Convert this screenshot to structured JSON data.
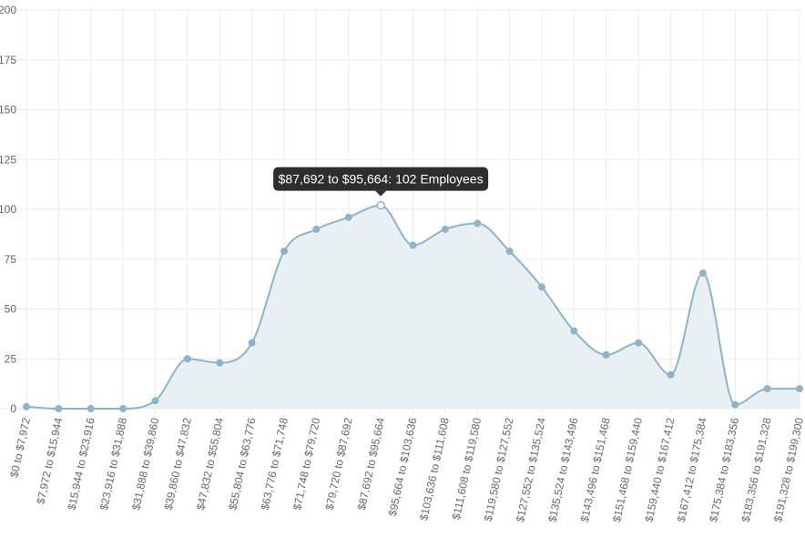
{
  "chart_data": {
    "type": "area",
    "categories": [
      "$0 to $7,972",
      "$7,972 to $15,944",
      "$15,944 to $23,916",
      "$23,916 to $31,888",
      "$31,888 to $39,860",
      "$39,860 to $47,832",
      "$47,832 to $55,804",
      "$55,804 to $63,776",
      "$63,776 to $71,748",
      "$71,748 to $79,720",
      "$79,720 to $87,692",
      "$87,692 to $95,664",
      "$95,664 to $103,636",
      "$103,636 to $111,608",
      "$111,608 to $119,580",
      "$119,580 to $127,552",
      "$127,552 to $135,524",
      "$135,524 to $143,496",
      "$143,496 to $151,468",
      "$151,468 to $159,440",
      "$159,440 to $167,412",
      "$167,412 to $175,384",
      "$175,384 to $183,356",
      "$183,356 to $191,328",
      "$191,328 to $199,300"
    ],
    "values": [
      1,
      0,
      0,
      0,
      4,
      25,
      23,
      33,
      79,
      90,
      96,
      102,
      82,
      90,
      93,
      79,
      61,
      39,
      27,
      33,
      17,
      68,
      2,
      10,
      10
    ],
    "ylim": [
      0,
      200
    ],
    "yticks": [
      0,
      25,
      50,
      75,
      100,
      125,
      150,
      175,
      200
    ],
    "grid": true,
    "colors": {
      "line": "#8db4c8",
      "fill": "#e8f0f4",
      "point": "#8db4c8"
    },
    "tooltip": {
      "text": "$87,692 to $95,664: 102 Employees",
      "index": 11
    }
  }
}
